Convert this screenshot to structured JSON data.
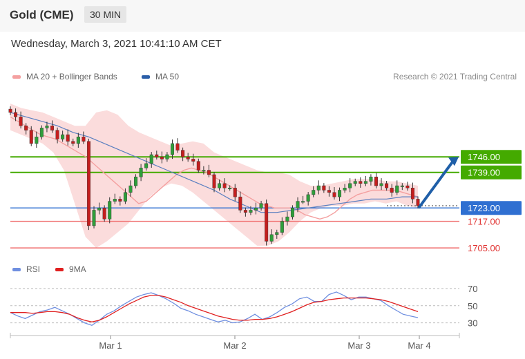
{
  "header": {
    "title": "Gold (CME)",
    "timeframe": "30 MIN"
  },
  "date_line": "Wednesday, March 3, 2021 10:41:10 AM CET",
  "legend": {
    "ma20": {
      "label": "MA 20 + Bollinger Bands",
      "color": "#f4a0a0"
    },
    "ma50": {
      "label": "MA 50",
      "color": "#2a5ea8"
    },
    "credit": "Research © 2021 Trading Central"
  },
  "rsi_legend": {
    "rsi": {
      "label": "RSI",
      "color": "#6f8fe0"
    },
    "ma9": {
      "label": "9MA",
      "color": "#e02020"
    }
  },
  "chart_data": [
    {
      "type": "line",
      "title": "Gold (CME)",
      "subtitle": "30 MIN",
      "ylim": [
        1701,
        1770
      ],
      "x_ticks": [
        "Mar 1",
        "Mar 2",
        "Mar 3",
        "Mar 4"
      ],
      "levels": [
        {
          "value": 1746.0,
          "label": "1746.00",
          "kind": "resistance",
          "color": "#44aa00"
        },
        {
          "value": 1739.0,
          "label": "1739.00",
          "kind": "resistance",
          "color": "#44aa00"
        },
        {
          "value": 1723.0,
          "label": "1723.00",
          "kind": "current",
          "color": "#2f6fd1"
        },
        {
          "value": 1717.0,
          "label": "1717.00",
          "kind": "support",
          "color": "#f07070"
        },
        {
          "value": 1705.0,
          "label": "1705.00",
          "kind": "support",
          "color": "#f07070"
        }
      ],
      "price_series": {
        "name": "Price (candles)",
        "values": [
          1766,
          1764,
          1760,
          1758,
          1752,
          1755,
          1759,
          1760,
          1758,
          1754,
          1756,
          1753,
          1752,
          1755,
          1753,
          1715,
          1722,
          1723,
          1718,
          1726,
          1727,
          1726,
          1730,
          1733,
          1737,
          1741,
          1743,
          1747,
          1746,
          1745,
          1747,
          1752,
          1749,
          1746,
          1745,
          1744,
          1740,
          1740,
          1738,
          1732,
          1734,
          1732,
          1732,
          1728,
          1722,
          1721,
          1722,
          1723,
          1725,
          1708,
          1711,
          1712,
          1717,
          1719,
          1723,
          1726,
          1726,
          1729,
          1731,
          1733,
          1731,
          1730,
          1728,
          1731,
          1732,
          1734,
          1735,
          1734,
          1735,
          1737,
          1733,
          1734,
          1732,
          1730,
          1733,
          1733,
          1732,
          1727,
          1724
        ],
        "forecast_target": 1746
      },
      "ma20": [
        1764,
        1762,
        1760,
        1758,
        1756,
        1755,
        1754,
        1752,
        1750,
        1748,
        1746,
        1743,
        1740,
        1737,
        1734,
        1731,
        1728,
        1725,
        1726,
        1729,
        1732,
        1735,
        1738,
        1740,
        1741,
        1740,
        1739,
        1737,
        1735,
        1733,
        1731,
        1729,
        1727,
        1725,
        1724,
        1723,
        1723,
        1723,
        1722,
        1720,
        1719,
        1718,
        1719,
        1721,
        1724,
        1727,
        1729,
        1730,
        1731,
        1731,
        1731,
        1731,
        1730,
        1729,
        1728
      ],
      "bollinger_upper": [
        1770,
        1768,
        1767,
        1766,
        1764,
        1762,
        1760,
        1760,
        1766,
        1767,
        1765,
        1760,
        1757,
        1755,
        1753,
        1751,
        1752,
        1753,
        1752,
        1748,
        1746,
        1744,
        1742,
        1740,
        1739,
        1739,
        1738,
        1735,
        1733,
        1733,
        1734,
        1735,
        1736,
        1736,
        1736,
        1735,
        1735,
        1734,
        1733
      ],
      "bollinger_lower": [
        1758,
        1756,
        1754,
        1752,
        1748,
        1740,
        1725,
        1710,
        1705,
        1708,
        1712,
        1716,
        1722,
        1728,
        1732,
        1734,
        1733,
        1730,
        1726,
        1722,
        1718,
        1714,
        1710,
        1706,
        1706,
        1708,
        1712,
        1717,
        1721,
        1723,
        1724,
        1724,
        1725,
        1725,
        1726,
        1725,
        1726,
        1724,
        1723
      ],
      "ma50": [
        1766,
        1764,
        1762,
        1760,
        1757,
        1755,
        1752,
        1749,
        1746,
        1743,
        1740,
        1737,
        1734,
        1731,
        1727,
        1724,
        1721,
        1721,
        1722,
        1723,
        1724,
        1725,
        1726,
        1727,
        1727,
        1728,
        1728
      ],
      "rsi_panel": {
        "yticks": [
          70,
          50,
          30
        ],
        "ylim": [
          20,
          78
        ],
        "rsi": [
          42,
          38,
          35,
          39,
          43,
          45,
          48,
          44,
          40,
          35,
          30,
          27,
          33,
          40,
          44,
          50,
          55,
          60,
          63,
          65,
          62,
          58,
          53,
          47,
          44,
          40,
          37,
          34,
          31,
          33,
          30,
          31,
          35,
          40,
          34,
          37,
          42,
          48,
          52,
          58,
          60,
          55,
          55,
          63,
          66,
          62,
          57,
          60,
          60,
          58,
          56,
          50,
          45,
          40,
          38,
          36
        ],
        "ma9": [
          42,
          42,
          42,
          41,
          42,
          43,
          43,
          42,
          40,
          36,
          33,
          31,
          33,
          37,
          42,
          47,
          52,
          56,
          60,
          62,
          62,
          60,
          57,
          54,
          50,
          47,
          44,
          41,
          38,
          36,
          34,
          33,
          33,
          34,
          34,
          35,
          37,
          40,
          43,
          47,
          51,
          54,
          55,
          57,
          58,
          59,
          59,
          59,
          59,
          58,
          57,
          55,
          52,
          49,
          46,
          43
        ]
      }
    }
  ]
}
